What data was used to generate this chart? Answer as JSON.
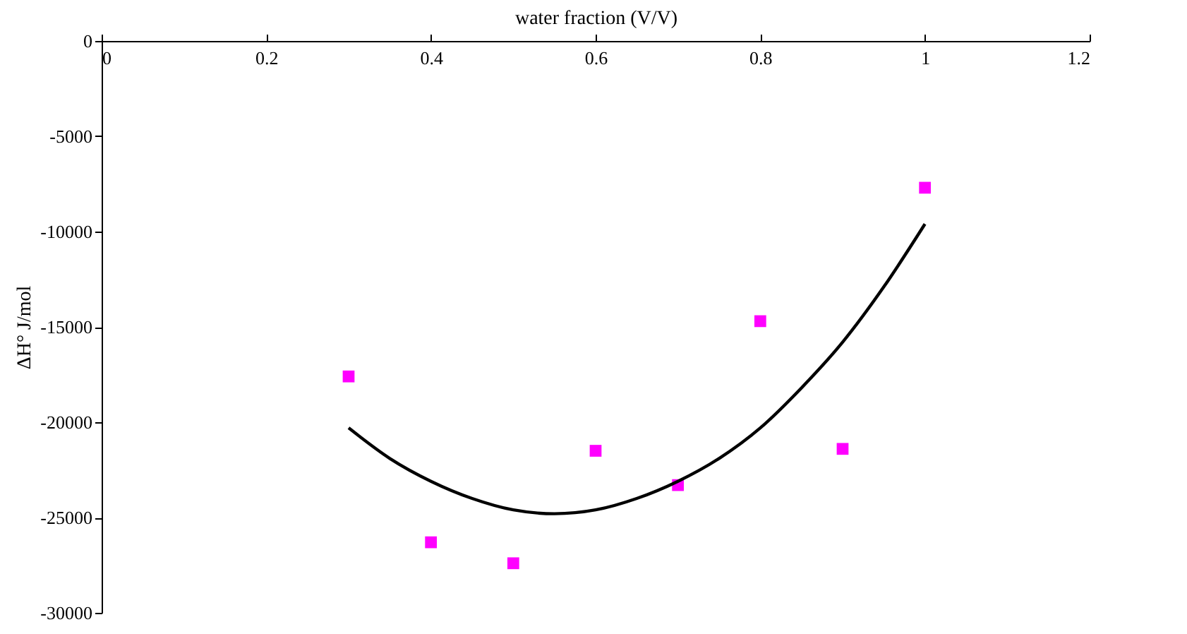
{
  "chart_data": {
    "type": "scatter",
    "xlabel": "water fraction (V/V)",
    "ylabel": "ΔH° J/mol",
    "xlim": [
      0,
      1.2
    ],
    "xticks": [
      0,
      0.2,
      0.4,
      0.6,
      0.8,
      1,
      1.2
    ],
    "ylim": [
      -30000,
      0
    ],
    "yticks": [
      -30000,
      -25000,
      -20000,
      -15000,
      -10000,
      -5000,
      0
    ],
    "grid": false,
    "series": [
      {
        "marker": "square",
        "color": "#ff00ff",
        "x": [
          0.3,
          0.4,
          0.5,
          0.6,
          0.7,
          0.8,
          0.9,
          1.0
        ],
        "values": [
          -17600,
          -26300,
          -27400,
          -21500,
          -23300,
          -14700,
          -21400,
          -7700
        ]
      },
      {
        "type": "line",
        "marker": "none",
        "color": "#000000",
        "x": [
          0.3,
          0.35,
          0.4,
          0.45,
          0.5,
          0.55,
          0.6,
          0.65,
          0.7,
          0.75,
          0.8,
          0.85,
          0.9,
          0.95,
          1.0
        ],
        "values": [
          -20300,
          -21900,
          -23100,
          -24000,
          -24600,
          -24800,
          -24600,
          -24000,
          -23100,
          -21900,
          -20300,
          -18200,
          -15800,
          -12900,
          -9600
        ]
      }
    ]
  }
}
